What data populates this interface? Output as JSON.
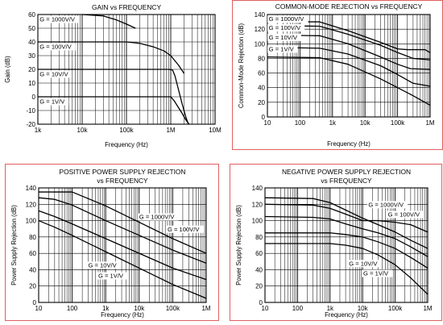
{
  "colors": {
    "frame": "#e06060",
    "curve": "#000000",
    "grid": "#000000"
  },
  "chart_data": [
    {
      "id": "gain",
      "type": "line",
      "title": "GAIN vs FREQUENCY",
      "xlabel": "Frequency (Hz)",
      "ylabel": "Gain (dB)",
      "xscale": "log",
      "xlim": [
        1000,
        10000000
      ],
      "ylim": [
        -20,
        60
      ],
      "x_ticks": [
        1000,
        10000,
        100000,
        1000000,
        10000000
      ],
      "x_tick_labels": [
        "1k",
        "10k",
        "100k",
        "1M",
        "10M"
      ],
      "y_ticks": [
        -20,
        -10,
        0,
        10,
        20,
        30,
        40,
        50,
        60
      ],
      "y_tick_labels": [
        "-20",
        "-10",
        "0",
        "10",
        "20",
        "30",
        "40",
        "50",
        "60"
      ],
      "framed": false,
      "series": [
        {
          "values": [
            [
              10000,
              60
            ],
            [
              30000,
              59
            ],
            [
              60000,
              56
            ],
            [
              100000,
              53
            ],
            [
              160000,
              50
            ]
          ]
        },
        {
          "values": [
            [
              1000,
              40
            ],
            [
              100000,
              40
            ],
            [
              200000,
              39
            ],
            [
              400000,
              36.5
            ],
            [
              700000,
              33.5
            ],
            [
              1000000,
              30
            ],
            [
              1500000,
              23
            ],
            [
              2000000,
              17
            ]
          ]
        },
        {
          "values": [
            [
              1000,
              20
            ],
            [
              900000,
              20
            ],
            [
              1100000,
              19.5
            ],
            [
              1250000,
              15
            ],
            [
              1500000,
              5
            ],
            [
              1800000,
              -5
            ],
            [
              2200000,
              -15
            ],
            [
              2500000,
              -20
            ]
          ]
        },
        {
          "values": [
            [
              1000,
              0
            ],
            [
              1000000,
              0
            ],
            [
              1200000,
              -3
            ],
            [
              1500000,
              -8
            ],
            [
              1800000,
              -12
            ],
            [
              2200000,
              -17
            ],
            [
              2600000,
              -20
            ]
          ]
        }
      ],
      "annotations": [
        {
          "text": "G = 1000V/V",
          "x": 1100,
          "y": 55
        },
        {
          "text": "G = 100V/V",
          "x": 1100,
          "y": 35
        },
        {
          "text": "G = 10V/V",
          "x": 1100,
          "y": 15
        },
        {
          "text": "G = 1V/V",
          "x": 1100,
          "y": -5
        }
      ]
    },
    {
      "id": "cmr",
      "type": "line",
      "title": "COMMON-MODE REJECTION vs FREQUENCY",
      "xlabel": "Frequency (Hz)",
      "ylabel": "Common-Mode Rejection (dB)",
      "xscale": "log",
      "xlim": [
        10,
        1000000
      ],
      "ylim": [
        0,
        140
      ],
      "x_ticks": [
        10,
        100,
        1000,
        10000,
        100000,
        1000000
      ],
      "x_tick_labels": [
        "10",
        "100",
        "1k",
        "10k",
        "100k",
        "1M"
      ],
      "y_ticks": [
        0,
        20,
        40,
        60,
        80,
        100,
        120,
        140
      ],
      "y_tick_labels": [
        "0",
        "20",
        "40",
        "60",
        "80",
        "100",
        "120",
        "140"
      ],
      "framed": true,
      "series": [
        {
          "values": [
            [
              10,
              130
            ],
            [
              400,
              130
            ],
            [
              3000,
              118
            ],
            [
              30000,
              102
            ],
            [
              100000,
              93
            ],
            [
              200000,
              92
            ],
            [
              700000,
              92
            ],
            [
              1000000,
              88
            ]
          ]
        },
        {
          "values": [
            [
              10,
              125
            ],
            [
              400,
              124
            ],
            [
              3000,
              113
            ],
            [
              30000,
              98
            ],
            [
              100000,
              88
            ],
            [
              300000,
              80
            ],
            [
              1000000,
              78
            ]
          ]
        },
        {
          "values": [
            [
              10,
              112
            ],
            [
              400,
              111
            ],
            [
              3000,
              100
            ],
            [
              30000,
              82
            ],
            [
              100000,
              72
            ],
            [
              250000,
              66
            ],
            [
              1000000,
              65
            ]
          ]
        },
        {
          "values": [
            [
              10,
              95
            ],
            [
              400,
              94
            ],
            [
              3000,
              86
            ],
            [
              30000,
              70
            ],
            [
              100000,
              58
            ],
            [
              300000,
              46
            ],
            [
              1000000,
              42
            ]
          ]
        },
        {
          "values": [
            [
              10,
              82
            ],
            [
              400,
              81
            ],
            [
              3000,
              72
            ],
            [
              30000,
              52
            ],
            [
              100000,
              40
            ],
            [
              300000,
              29
            ],
            [
              1000000,
              16
            ]
          ]
        }
      ],
      "annotations": [
        {
          "text": "G = 1000V/V",
          "x": 11,
          "y": 131
        },
        {
          "text": "G = 100V/V",
          "x": 11,
          "y": 119
        },
        {
          "text": "G = 10V/V",
          "x": 11,
          "y": 106
        },
        {
          "text": "G = 1V/V",
          "x": 11,
          "y": 90
        }
      ]
    },
    {
      "id": "psrr-pos",
      "type": "line",
      "title": "POSITIVE POWER SUPPLY REJECTION",
      "subtitle": "vs FREQUENCY",
      "xlabel": "Frequency (Hz)",
      "ylabel": "Power Supply Rejection (dB)",
      "xscale": "log",
      "xlim": [
        10,
        1000000
      ],
      "ylim": [
        0,
        140
      ],
      "x_ticks": [
        10,
        100,
        1000,
        10000,
        100000,
        1000000
      ],
      "x_tick_labels": [
        "10",
        "100",
        "1k",
        "10k",
        "100k",
        "1M"
      ],
      "y_ticks": [
        0,
        20,
        40,
        60,
        80,
        100,
        120,
        140
      ],
      "y_tick_labels": [
        "0",
        "20",
        "40",
        "60",
        "80",
        "100",
        "120",
        "140"
      ],
      "framed": true,
      "series": [
        {
          "values": [
            [
              10,
              135
            ],
            [
              100,
              135
            ],
            [
              1000,
              118
            ],
            [
              10000,
              98
            ],
            [
              100000,
              78
            ],
            [
              1000000,
              60
            ]
          ]
        },
        {
          "values": [
            [
              10,
              128
            ],
            [
              30,
              126
            ],
            [
              100,
              119
            ],
            [
              1000,
              100
            ],
            [
              10000,
              82
            ],
            [
              100000,
              64
            ],
            [
              1000000,
              48
            ]
          ]
        },
        {
          "values": [
            [
              10,
              112
            ],
            [
              30,
              105
            ],
            [
              100,
              96
            ],
            [
              1000,
              78
            ],
            [
              10000,
              60
            ],
            [
              100000,
              42
            ],
            [
              1000000,
              28
            ]
          ]
        },
        {
          "values": [
            [
              10,
              100
            ],
            [
              30,
              92
            ],
            [
              100,
              82
            ],
            [
              1000,
              62
            ],
            [
              10000,
              42
            ],
            [
              100000,
              22
            ],
            [
              1000000,
              5
            ]
          ]
        }
      ],
      "annotations": [
        {
          "text": "G = 1000V/V",
          "x": 10000,
          "y": 102
        },
        {
          "text": "G = 100V/V",
          "x": 70000,
          "y": 87
        },
        {
          "text": "G = 10V/V",
          "x": 300,
          "y": 43
        },
        {
          "text": "G = 1V/V",
          "x": 600,
          "y": 30
        }
      ]
    },
    {
      "id": "psrr-neg",
      "type": "line",
      "title": "NEGATIVE POWER SUPPLY REJECTION",
      "subtitle": "vs FREQUENCY",
      "xlabel": "Frequency (Hz)",
      "ylabel": "Power Supply Rejection (dB)",
      "xscale": "log",
      "xlim": [
        10,
        1000000
      ],
      "ylim": [
        0,
        140
      ],
      "x_ticks": [
        10,
        100,
        1000,
        10000,
        100000,
        1000000
      ],
      "x_tick_labels": [
        "10",
        "100",
        "1k",
        "10k",
        "100k",
        "1M"
      ],
      "y_ticks": [
        0,
        20,
        40,
        60,
        80,
        100,
        120,
        140
      ],
      "y_tick_labels": [
        "0",
        "20",
        "40",
        "60",
        "80",
        "100",
        "120",
        "140"
      ],
      "framed": true,
      "series": [
        {
          "values": [
            [
              10,
              128
            ],
            [
              300,
              127
            ],
            [
              1000,
              122
            ],
            [
              3000,
              113
            ],
            [
              10000,
              103
            ],
            [
              30000,
              95
            ],
            [
              100000,
              86
            ],
            [
              300000,
              76
            ],
            [
              1000000,
              66
            ]
          ]
        },
        {
          "values": [
            [
              10,
              120
            ],
            [
              300,
              119
            ],
            [
              1000,
              115
            ],
            [
              3000,
              108
            ],
            [
              10000,
              100
            ],
            [
              30000,
              100
            ],
            [
              100000,
              98
            ],
            [
              300000,
              95
            ],
            [
              1000000,
              86
            ]
          ]
        },
        {
          "values": [
            [
              10,
              105
            ],
            [
              300,
              104
            ],
            [
              1000,
              102
            ],
            [
              3000,
              96
            ],
            [
              10000,
              90
            ],
            [
              30000,
              85
            ],
            [
              100000,
              78
            ],
            [
              300000,
              68
            ],
            [
              1000000,
              56
            ]
          ]
        },
        {
          "values": [
            [
              10,
              85
            ],
            [
              1000,
              85
            ],
            [
              3000,
              83
            ],
            [
              10000,
              80
            ],
            [
              30000,
              74
            ],
            [
              100000,
              66
            ],
            [
              300000,
              55
            ],
            [
              1000000,
              42
            ]
          ]
        },
        {
          "values": [
            [
              10,
              72
            ],
            [
              1000,
              72
            ],
            [
              3000,
              70
            ],
            [
              10000,
              66
            ],
            [
              30000,
              58
            ],
            [
              100000,
              46
            ],
            [
              300000,
              30
            ],
            [
              1000000,
              10
            ]
          ]
        }
      ],
      "annotations": [
        {
          "text": "G = 1000V/V",
          "x": 15000,
          "y": 117
        },
        {
          "text": "G = 100V/V",
          "x": 60000,
          "y": 105
        },
        {
          "text": "G = 10V/V",
          "x": 3800,
          "y": 45
        },
        {
          "text": "G = 1V/V",
          "x": 10500,
          "y": 33
        }
      ]
    }
  ]
}
